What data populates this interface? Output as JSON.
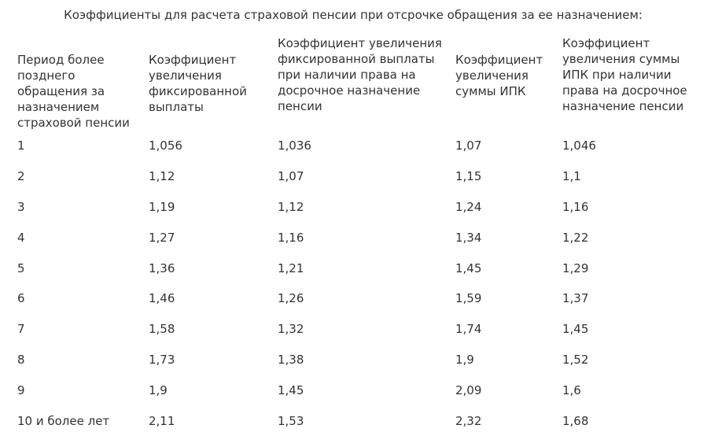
{
  "title": "Коэффициенты для расчета страховой пенсии при отсрочке обращения за ее назначением:",
  "table": {
    "headers": [
      "Период более позднего обращения за назначением страховой пенсии",
      "Коэффициент увеличения фиксированной выплаты",
      "Коэффициент увеличения фиксированной выплаты при наличии права на досрочное назначение пенсии",
      "Коэффициент увеличения суммы ИПК",
      "Коэффициент увеличения суммы ИПК при наличии права на досрочное назначение пенсии"
    ],
    "rows": [
      [
        "1",
        "1,056",
        "1,036",
        "1,07",
        "1,046"
      ],
      [
        "2",
        "1,12",
        "1,07",
        "1,15",
        "1,1"
      ],
      [
        "3",
        "1,19",
        "1,12",
        "1,24",
        "1,16"
      ],
      [
        "4",
        "1,27",
        "1,16",
        "1,34",
        "1,22"
      ],
      [
        "5",
        "1,36",
        "1,21",
        "1,45",
        "1,29"
      ],
      [
        "6",
        "1,46",
        "1,26",
        "1,59",
        "1,37"
      ],
      [
        "7",
        "1,58",
        "1,32",
        "1,74",
        "1,45"
      ],
      [
        "8",
        "1,73",
        "1,38",
        "1,9",
        "1,52"
      ],
      [
        "9",
        "1,9",
        "1,45",
        "2,09",
        "1,6"
      ],
      [
        "10 и более лет",
        "2,11",
        "1,53",
        "2,32",
        "1,68"
      ]
    ]
  }
}
